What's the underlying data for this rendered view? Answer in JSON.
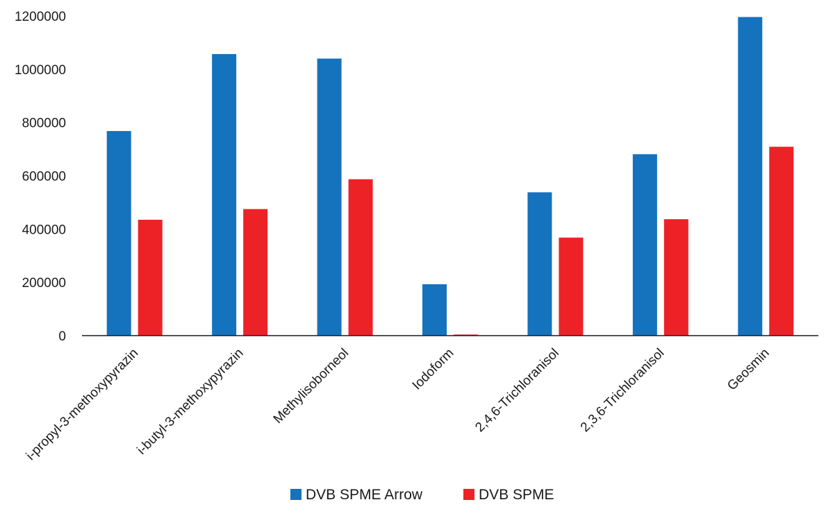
{
  "chart_data": {
    "type": "bar",
    "title": "",
    "xlabel": "",
    "ylabel": "",
    "ylim": [
      0,
      1200000
    ],
    "yticks": [
      0,
      200000,
      400000,
      600000,
      800000,
      1000000,
      1200000
    ],
    "grid": false,
    "legend_position": "bottom",
    "categories": [
      "i-propyl-3-methoxypyrazin",
      "i-butyl-3-methoxypyrazin",
      "Methylisoborneol",
      "Iodoform",
      "2,4,6-Trichloranisol",
      "2,3,6-Trichloranisol",
      "Geosmin"
    ],
    "series": [
      {
        "name": "DVB SPME Arrow",
        "color": "#1572bd",
        "values": [
          768000,
          1057000,
          1040000,
          193000,
          538000,
          681000,
          1196000
        ]
      },
      {
        "name": "DVB SPME",
        "color": "#ed2227",
        "values": [
          435000,
          475000,
          587000,
          4000,
          368000,
          437000,
          709000
        ]
      }
    ]
  }
}
